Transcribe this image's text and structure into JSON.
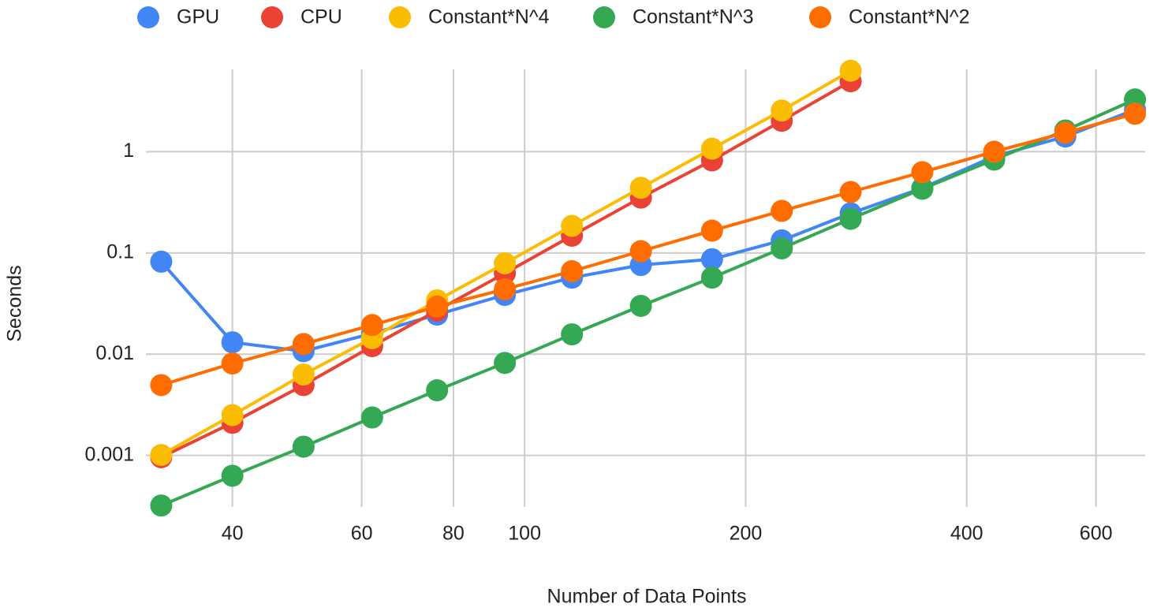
{
  "chart_data": {
    "type": "line",
    "x_label": "Number of Data Points",
    "y_label": "Seconds",
    "x": [
      32,
      40,
      50,
      62,
      76,
      94,
      116,
      144,
      180,
      224,
      278,
      348,
      436,
      545,
      678
    ],
    "series": [
      {
        "name": "GPU",
        "color": "#4285f4",
        "values": [
          0.082,
          0.0131,
          0.0107,
          0.016,
          0.0246,
          0.0385,
          0.057,
          0.076,
          0.0866,
          0.133,
          0.246,
          0.437,
          0.9,
          1.41,
          2.6
        ]
      },
      {
        "name": "CPU",
        "color": "#ea4335",
        "values": [
          0.00096,
          0.0021,
          0.00495,
          0.012,
          0.027,
          0.063,
          0.148,
          0.352,
          0.82,
          2.02,
          4.96,
          null,
          null,
          null,
          null
        ]
      },
      {
        "name": "Constant*N^4",
        "color": "#fbbc04",
        "values": [
          0.00101,
          0.0025,
          0.0063,
          0.0144,
          0.034,
          0.079,
          0.185,
          0.44,
          1.07,
          2.55,
          6.3,
          null,
          null,
          null,
          null
        ]
      },
      {
        "name": "Constant*N^3",
        "color": "#34a853",
        "values": [
          0.00032,
          0.00063,
          0.00122,
          0.00237,
          0.0044,
          0.0082,
          0.0157,
          0.03,
          0.057,
          0.111,
          0.217,
          0.43,
          0.835,
          1.62,
          3.28
        ]
      },
      {
        "name": "Constant*N^2",
        "color": "#ff6d01",
        "values": [
          0.00495,
          0.0081,
          0.0126,
          0.0194,
          0.0295,
          0.0438,
          0.066,
          0.104,
          0.166,
          0.26,
          0.4,
          0.627,
          1.0,
          1.54,
          2.37
        ]
      }
    ],
    "xlim": [
      30.5,
      700
    ],
    "ylim": [
      0.00031,
      6.5
    ],
    "xticks": [
      40,
      60,
      80,
      100,
      200,
      400,
      600
    ],
    "yticks": [
      0.001,
      0.01,
      0.1,
      1
    ],
    "xlog": true,
    "ylog": true,
    "grid": true,
    "legend": "top"
  }
}
